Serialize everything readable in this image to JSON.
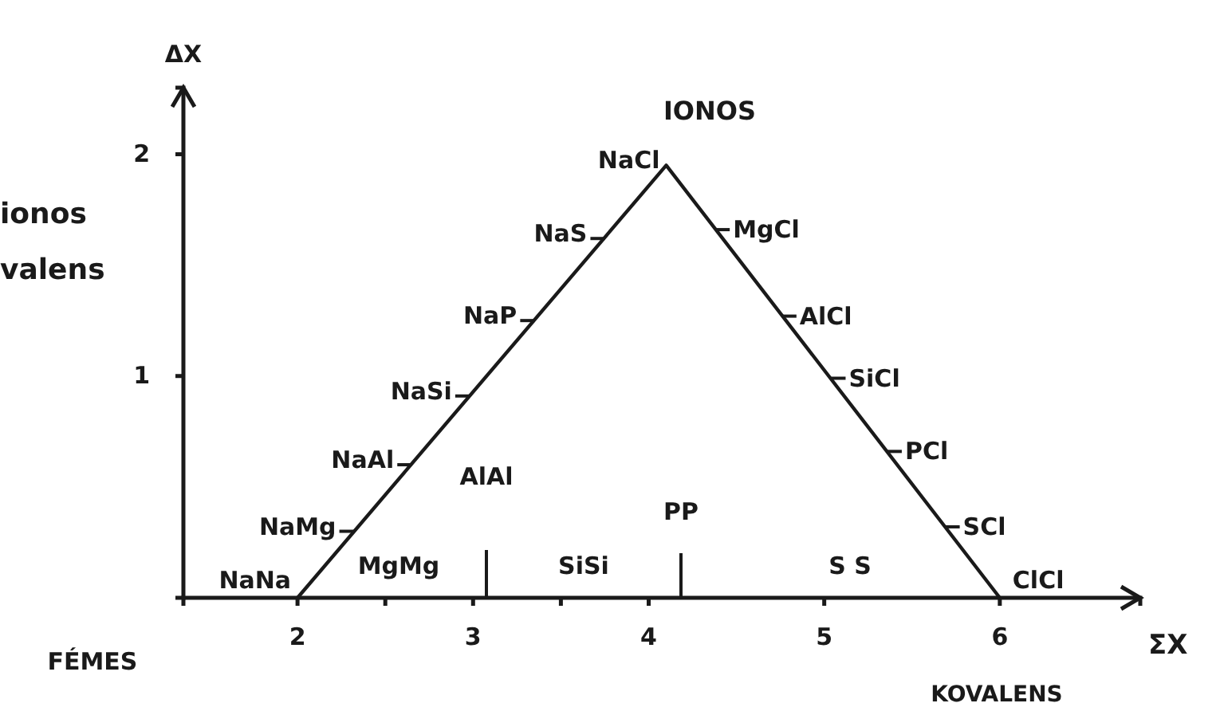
{
  "chart_data": {
    "type": "line",
    "xlabel": "ΣX",
    "ylabel": "ΔX",
    "x": [
      2,
      4.1,
      6
    ],
    "values": [
      0,
      1.95,
      0
    ],
    "color": "#1a1a1a",
    "xlim": [
      1.35,
      6.8
    ],
    "ylim": [
      0,
      2.3
    ],
    "xticks": [
      2,
      {
        "value": 2.5,
        "label": null
      },
      3,
      {
        "value": 3.5,
        "label": null
      },
      4,
      5,
      6
    ],
    "yticks": [
      1,
      2
    ],
    "grid": false,
    "marker": "none",
    "line_style": "solid",
    "annotations": [
      {
        "text": "NaNa",
        "x": 2,
        "y": 0
      },
      {
        "text": "NaMg",
        "x": 2.32,
        "y": 0.3
      },
      {
        "text": "NaAl",
        "x": 2.65,
        "y": 0.6
      },
      {
        "text": "NaSi",
        "x": 2.98,
        "y": 0.91
      },
      {
        "text": "NaP",
        "x": 3.35,
        "y": 1.25
      },
      {
        "text": "NaS",
        "x": 3.75,
        "y": 1.62
      },
      {
        "text": "NaCl",
        "x": 4.1,
        "y": 1.95
      },
      {
        "text": "MgCl",
        "x": 4.38,
        "y": 1.66
      },
      {
        "text": "AlCl",
        "x": 4.76,
        "y": 1.27
      },
      {
        "text": "SiCl",
        "x": 5.04,
        "y": 0.99
      },
      {
        "text": "PCl",
        "x": 5.36,
        "y": 0.66
      },
      {
        "text": "SCl",
        "x": 5.69,
        "y": 0.32
      },
      {
        "text": "ClCl",
        "x": 6,
        "y": 0
      },
      "MgMg",
      "AlAl",
      "SiSi",
      "PP",
      "S S",
      "IONOS",
      "KOVALENS",
      "FÉMES",
      "ionos",
      "valens"
    ]
  }
}
